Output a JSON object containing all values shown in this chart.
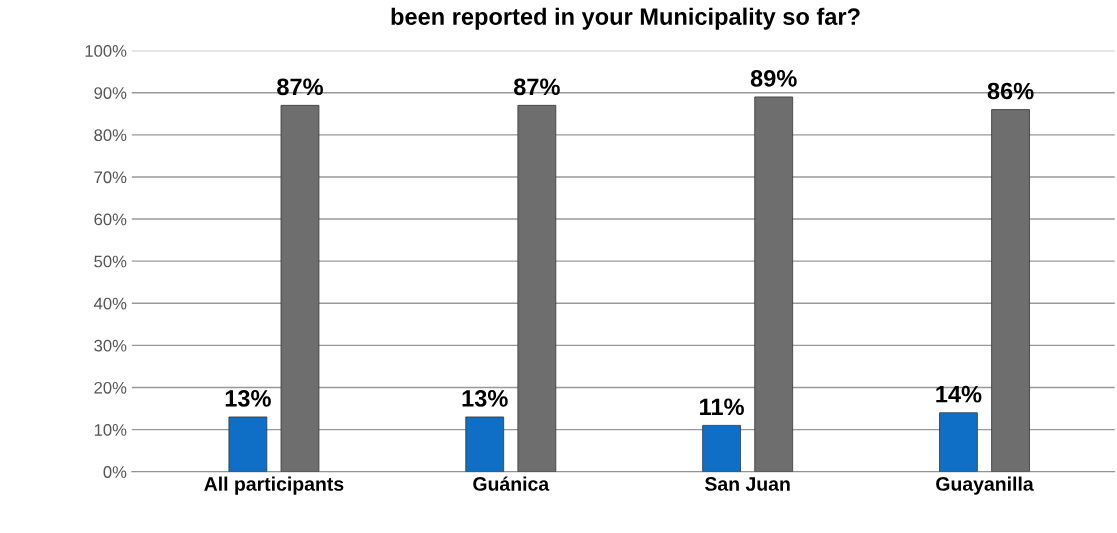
{
  "chart_data": {
    "type": "bar",
    "title": "been reported in your Municipality so far?",
    "categories": [
      "All participants",
      "Guánica",
      "San Juan",
      "Guayanilla"
    ],
    "series": [
      {
        "color": "#0f6fc6",
        "values": [
          13,
          13,
          11,
          14
        ],
        "value_labels": [
          "13%",
          "13%",
          "11%",
          "14%"
        ]
      },
      {
        "color": "#6e6e6e",
        "values": [
          87,
          87,
          89,
          86
        ],
        "value_labels": [
          "87%",
          "87%",
          "89%",
          "86%"
        ]
      }
    ],
    "ylim": [
      0,
      100
    ],
    "yticks": [
      {
        "value": 0,
        "label": "0%"
      },
      {
        "value": 10,
        "label": "10%"
      },
      {
        "value": 20,
        "label": "20%"
      },
      {
        "value": 30,
        "label": "30%"
      },
      {
        "value": 40,
        "label": "40%"
      },
      {
        "value": 50,
        "label": "50%"
      },
      {
        "value": 60,
        "label": "60%"
      },
      {
        "value": 70,
        "label": "70%"
      },
      {
        "value": 80,
        "label": "80%"
      },
      {
        "value": 90,
        "label": "90%"
      },
      {
        "value": 100,
        "label": "100%"
      }
    ],
    "grid": "y"
  }
}
